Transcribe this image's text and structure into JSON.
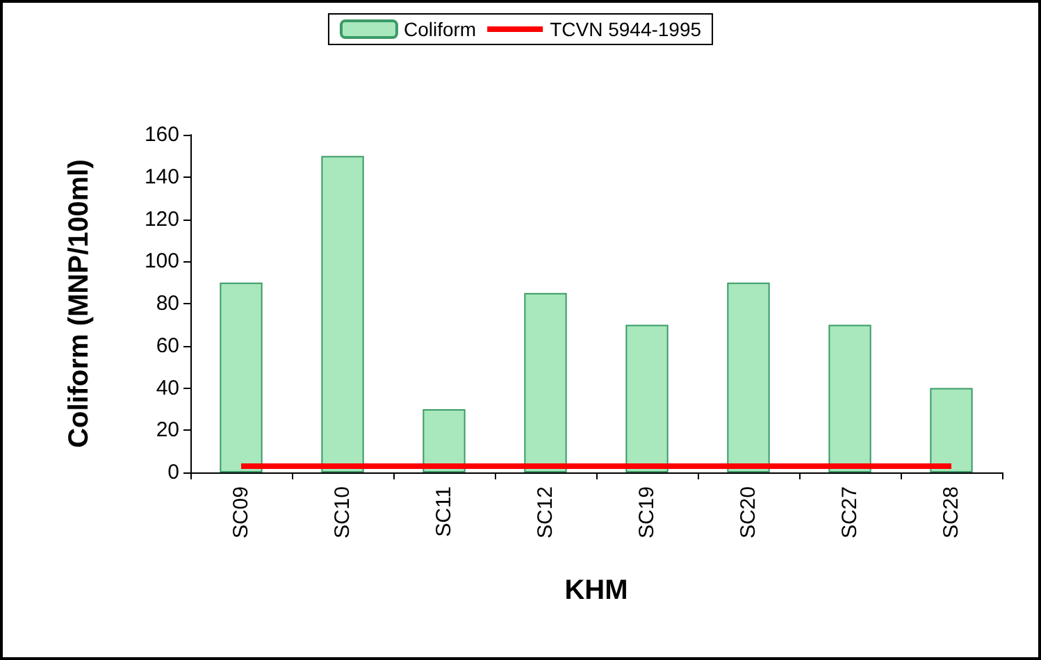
{
  "chart_data": {
    "type": "bar",
    "xlabel": "KHM",
    "ylabel": "Coliform (MNP/100ml)",
    "categories": [
      "SC09",
      "SC10",
      "SC11",
      "SC12",
      "SC19",
      "SC20",
      "SC27",
      "SC28"
    ],
    "series": [
      {
        "name": "Coliform",
        "color": "#a8e8bc",
        "values": [
          90,
          150,
          30,
          85,
          70,
          90,
          70,
          40
        ]
      },
      {
        "name": "TCVN 5944-1995",
        "type": "line",
        "color": "#ff0000",
        "values": [
          3,
          3,
          3,
          3,
          3,
          3,
          3,
          3
        ]
      }
    ],
    "ylim": [
      0,
      160
    ],
    "yticks": [
      0,
      20,
      40,
      60,
      80,
      100,
      120,
      140,
      160
    ],
    "legend": "top",
    "grid": false,
    "marker": "none"
  }
}
